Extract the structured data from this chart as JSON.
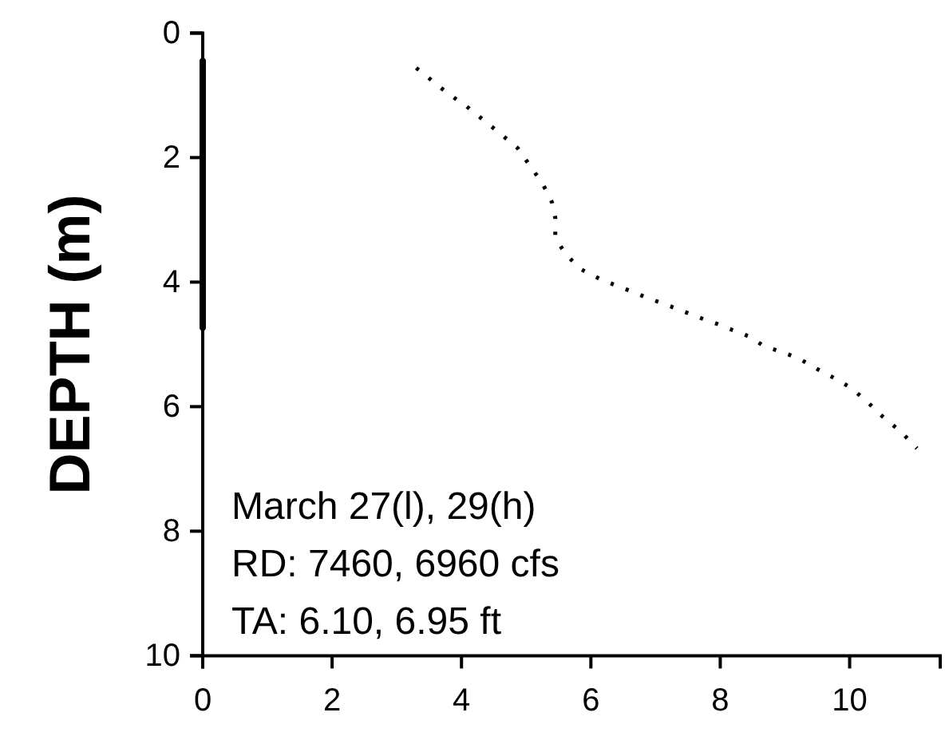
{
  "chart_data": {
    "type": "line",
    "ylabel": "DEPTH (m)",
    "xlim": [
      0,
      11.4
    ],
    "xticks": [
      0,
      2,
      4,
      6,
      8,
      10
    ],
    "ylim": [
      10,
      0
    ],
    "yticks": [
      0,
      2,
      4,
      6,
      8,
      10
    ],
    "grid": false,
    "marker": "none",
    "series": [
      {
        "color": "#000000",
        "line_style": "solid",
        "x": [
          0,
          0
        ],
        "values": [
          0.45,
          4.73
        ]
      },
      {
        "color": "#000000",
        "line_style": "dotted",
        "x": [
          3.3,
          3.55,
          3.79,
          4.08,
          4.32,
          4.57,
          4.87,
          5.07,
          5.25,
          5.4,
          5.45,
          5.45,
          5.6,
          5.84,
          6.14,
          6.38,
          6.63,
          6.89,
          7.16,
          7.41,
          7.65,
          7.95,
          8.19,
          8.44,
          8.68,
          8.98,
          9.22,
          9.47,
          9.76,
          10.01,
          10.25,
          10.5,
          10.8,
          11.04
        ],
        "values": [
          0.56,
          0.77,
          0.97,
          1.18,
          1.38,
          1.59,
          1.85,
          2.15,
          2.41,
          2.72,
          2.97,
          3.28,
          3.54,
          3.79,
          3.95,
          4.05,
          4.15,
          4.26,
          4.36,
          4.46,
          4.56,
          4.67,
          4.77,
          4.87,
          5.03,
          5.13,
          5.23,
          5.38,
          5.54,
          5.69,
          5.9,
          6.15,
          6.41,
          6.67
        ]
      }
    ],
    "annotations": [
      "March 27(l), 29(h)",
      "RD: 7460, 6960 cfs",
      "TA: 6.10, 6.95 ft"
    ]
  }
}
